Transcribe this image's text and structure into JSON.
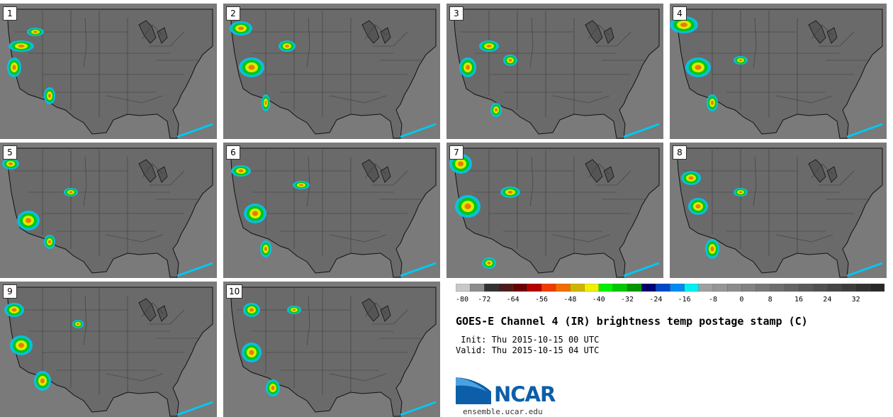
{
  "panels": [
    {
      "label": "1"
    },
    {
      "label": "2"
    },
    {
      "label": "3"
    },
    {
      "label": "4"
    },
    {
      "label": "5"
    },
    {
      "label": "6"
    },
    {
      "label": "7"
    },
    {
      "label": "8"
    },
    {
      "label": "9"
    },
    {
      "label": "10"
    }
  ],
  "colorbar": {
    "colors": [
      "#c8c8c8",
      "#8c8c8c",
      "#323232",
      "#4b1c1c",
      "#6e0000",
      "#b40000",
      "#f03c00",
      "#f06e00",
      "#d2b400",
      "#f0f000",
      "#00f000",
      "#00c800",
      "#009600",
      "#00006e",
      "#0046c8",
      "#008cf0",
      "#00f0f0",
      "#a0a0a0",
      "#969696",
      "#8c8c8c",
      "#828282",
      "#787878",
      "#6e6e6e",
      "#646464",
      "#5a5a5a",
      "#505050",
      "#464646",
      "#3c3c3c",
      "#323232",
      "#282828"
    ],
    "tick_labels": [
      "-80",
      "-72",
      "-64",
      "-56",
      "-48",
      "-40",
      "-32",
      "-24",
      "-16",
      "-8",
      "0",
      "8",
      "16",
      "24",
      "32"
    ]
  },
  "title": "GOES-E Channel 4 (IR) brightness temp postage stamp (C)",
  "init": " Init: Thu 2015-10-15 00 UTC",
  "valid": "Valid: Thu 2015-10-15 04 UTC",
  "logo": {
    "text": "NCAR",
    "url": "ensemble.ucar.edu"
  },
  "colors": {
    "map_background": "#6a6a6a",
    "boundary": "#111111",
    "ocean_texture": "#7a7a7a"
  }
}
